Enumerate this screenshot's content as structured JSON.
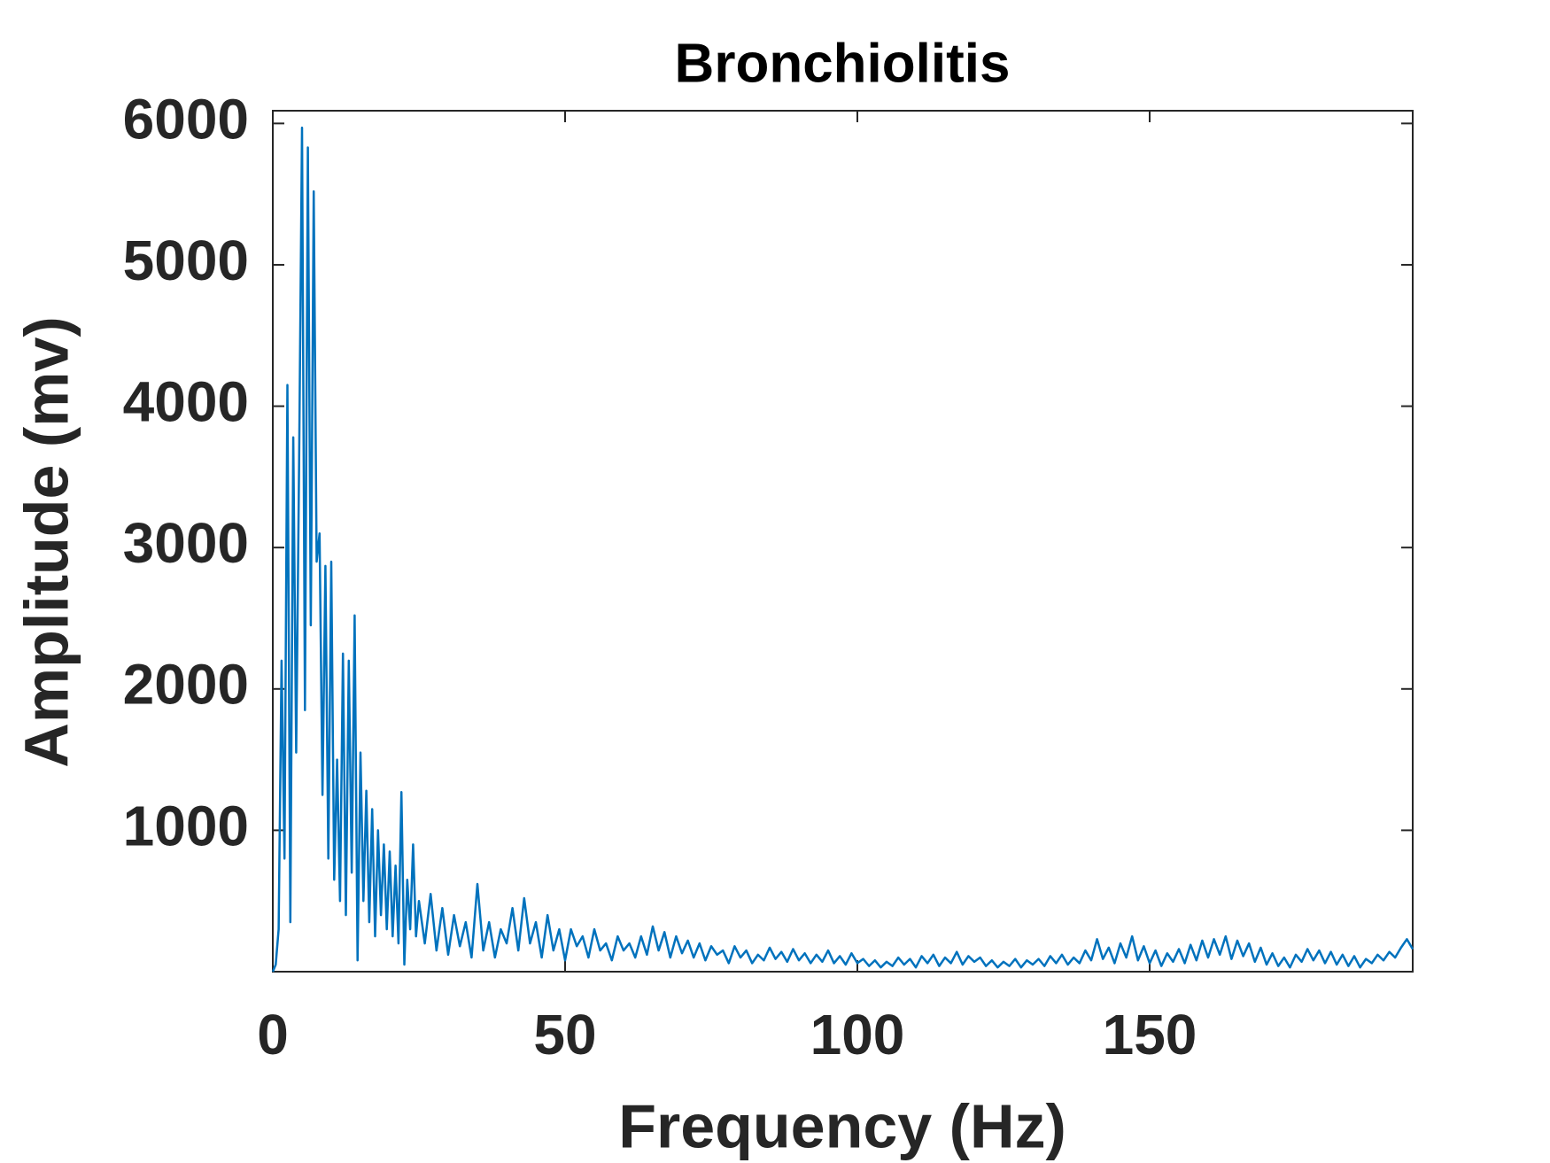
{
  "chart_data": {
    "type": "line",
    "title": "Bronchiolitis",
    "xlabel": "Frequency (Hz)",
    "ylabel": "Amplitude (mv)",
    "color": "#0072BD",
    "xlim": [
      0,
      195
    ],
    "ylim": [
      0,
      6090
    ],
    "xticks": [
      0,
      50,
      100,
      150
    ],
    "yticks": [
      1000,
      2000,
      3000,
      4000,
      5000,
      6000
    ],
    "x": [
      0,
      0.5,
      1,
      1.5,
      2,
      2.5,
      3,
      3.5,
      4,
      4.5,
      5,
      5.5,
      6,
      6.5,
      7,
      7.5,
      8,
      8.5,
      9,
      9.5,
      10,
      10.5,
      11,
      11.5,
      12,
      12.5,
      13,
      13.5,
      14,
      14.5,
      15,
      15.5,
      16,
      16.5,
      17,
      17.5,
      18,
      18.5,
      19,
      19.5,
      20,
      20.5,
      21,
      21.5,
      22,
      22.5,
      23,
      23.5,
      24,
      24.5,
      25,
      26,
      27,
      28,
      29,
      30,
      31,
      32,
      33,
      34,
      35,
      36,
      37,
      38,
      39,
      40,
      41,
      42,
      43,
      44,
      45,
      46,
      47,
      48,
      49,
      50,
      51,
      52,
      53,
      54,
      55,
      56,
      57,
      58,
      59,
      60,
      61,
      62,
      63,
      64,
      65,
      66,
      67,
      68,
      69,
      70,
      71,
      72,
      73,
      74,
      75,
      76,
      77,
      78,
      79,
      80,
      81,
      82,
      83,
      84,
      85,
      86,
      87,
      88,
      89,
      90,
      91,
      92,
      93,
      94,
      95,
      96,
      97,
      98,
      99,
      100,
      101,
      102,
      103,
      104,
      105,
      106,
      107,
      108,
      109,
      110,
      111,
      112,
      113,
      114,
      115,
      116,
      117,
      118,
      119,
      120,
      121,
      122,
      123,
      124,
      125,
      126,
      127,
      128,
      129,
      130,
      131,
      132,
      133,
      134,
      135,
      136,
      137,
      138,
      139,
      140,
      141,
      142,
      143,
      144,
      145,
      146,
      147,
      148,
      149,
      150,
      151,
      152,
      153,
      154,
      155,
      156,
      157,
      158,
      159,
      160,
      161,
      162,
      163,
      164,
      165,
      166,
      167,
      168,
      169,
      170,
      171,
      172,
      173,
      174,
      175,
      176,
      177,
      178,
      179,
      180,
      181,
      182,
      183,
      184,
      185,
      186,
      187,
      188,
      189,
      190,
      191,
      192,
      193,
      194,
      195
    ],
    "values": [
      0,
      50,
      300,
      2200,
      800,
      4150,
      350,
      3780,
      1550,
      3600,
      5970,
      1850,
      5830,
      2450,
      5520,
      2900,
      3100,
      1250,
      2870,
      800,
      2900,
      650,
      1500,
      500,
      2250,
      400,
      2200,
      700,
      2520,
      80,
      1550,
      500,
      1280,
      350,
      1150,
      250,
      1000,
      400,
      900,
      300,
      850,
      250,
      750,
      200,
      1270,
      50,
      650,
      300,
      900,
      250,
      500,
      200,
      550,
      150,
      450,
      120,
      400,
      180,
      350,
      100,
      620,
      150,
      350,
      100,
      300,
      200,
      450,
      150,
      520,
      200,
      350,
      100,
      400,
      150,
      300,
      80,
      300,
      180,
      250,
      100,
      300,
      150,
      200,
      80,
      250,
      150,
      200,
      100,
      250,
      120,
      320,
      150,
      280,
      100,
      250,
      130,
      220,
      100,
      200,
      80,
      180,
      120,
      150,
      60,
      180,
      100,
      150,
      60,
      120,
      80,
      170,
      90,
      140,
      70,
      160,
      80,
      130,
      60,
      120,
      70,
      150,
      60,
      110,
      50,
      130,
      60,
      90,
      40,
      80,
      30,
      70,
      40,
      100,
      50,
      90,
      30,
      110,
      60,
      120,
      40,
      100,
      60,
      140,
      50,
      110,
      70,
      100,
      40,
      80,
      30,
      70,
      40,
      90,
      30,
      80,
      50,
      90,
      40,
      110,
      60,
      120,
      50,
      100,
      60,
      150,
      80,
      230,
      90,
      170,
      60,
      200,
      100,
      250,
      80,
      180,
      60,
      150,
      40,
      130,
      70,
      160,
      60,
      190,
      80,
      220,
      100,
      230,
      120,
      250,
      90,
      220,
      110,
      200,
      70,
      170,
      50,
      130,
      40,
      100,
      30,
      120,
      70,
      160,
      80,
      150,
      60,
      140,
      50,
      120,
      40,
      110,
      30,
      90,
      60,
      120,
      80,
      140,
      100,
      170,
      230,
      160
    ]
  }
}
